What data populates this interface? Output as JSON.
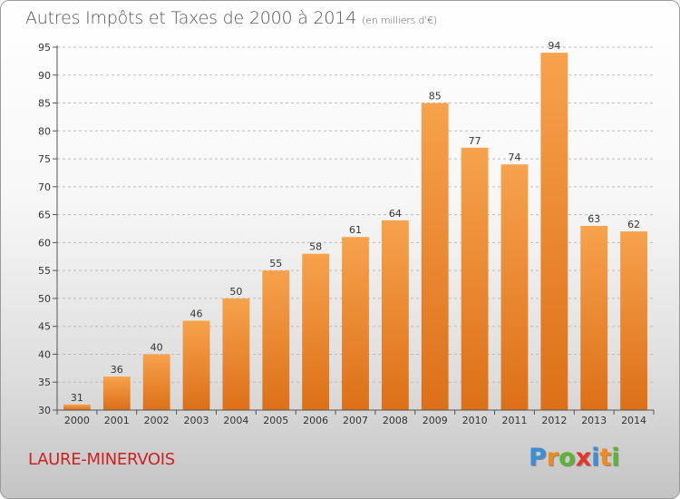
{
  "title": "Autres Impôts et Taxes de 2000 à 2014",
  "subtitle": "(en milliers d'€)",
  "commune": "LAURE-MINERVOIS",
  "logo": {
    "letters": [
      "P",
      "r",
      "o",
      "x",
      "i",
      "t",
      "i"
    ],
    "colors": [
      "#3a8fd6",
      "#f08a1c",
      "#5cb531",
      "#e8342c",
      "#3a8fd6",
      "#f08a1c",
      "#5cb531"
    ]
  },
  "colors": {
    "bar_top": "#f7a24c",
    "bar_bottom": "#dc7018",
    "grid": "#bcbcbc",
    "axis": "#555555",
    "text": "#333333"
  },
  "chart_data": {
    "type": "bar",
    "title": "Autres Impôts et Taxes de 2000 à 2014",
    "subtitle": "(en milliers d'€)",
    "categories": [
      "2000",
      "2001",
      "2002",
      "2003",
      "2004",
      "2005",
      "2006",
      "2007",
      "2008",
      "2009",
      "2010",
      "2011",
      "2012",
      "2013",
      "2014"
    ],
    "values": [
      31,
      36,
      40,
      46,
      50,
      55,
      58,
      61,
      64,
      85,
      77,
      74,
      94,
      63,
      62
    ],
    "ylim": [
      30,
      95
    ],
    "yticks": [
      30,
      35,
      40,
      45,
      50,
      55,
      60,
      65,
      70,
      75,
      80,
      85,
      90,
      95
    ],
    "grid": "horizontal dashed",
    "legend": "none",
    "xlabel": "",
    "ylabel": ""
  }
}
